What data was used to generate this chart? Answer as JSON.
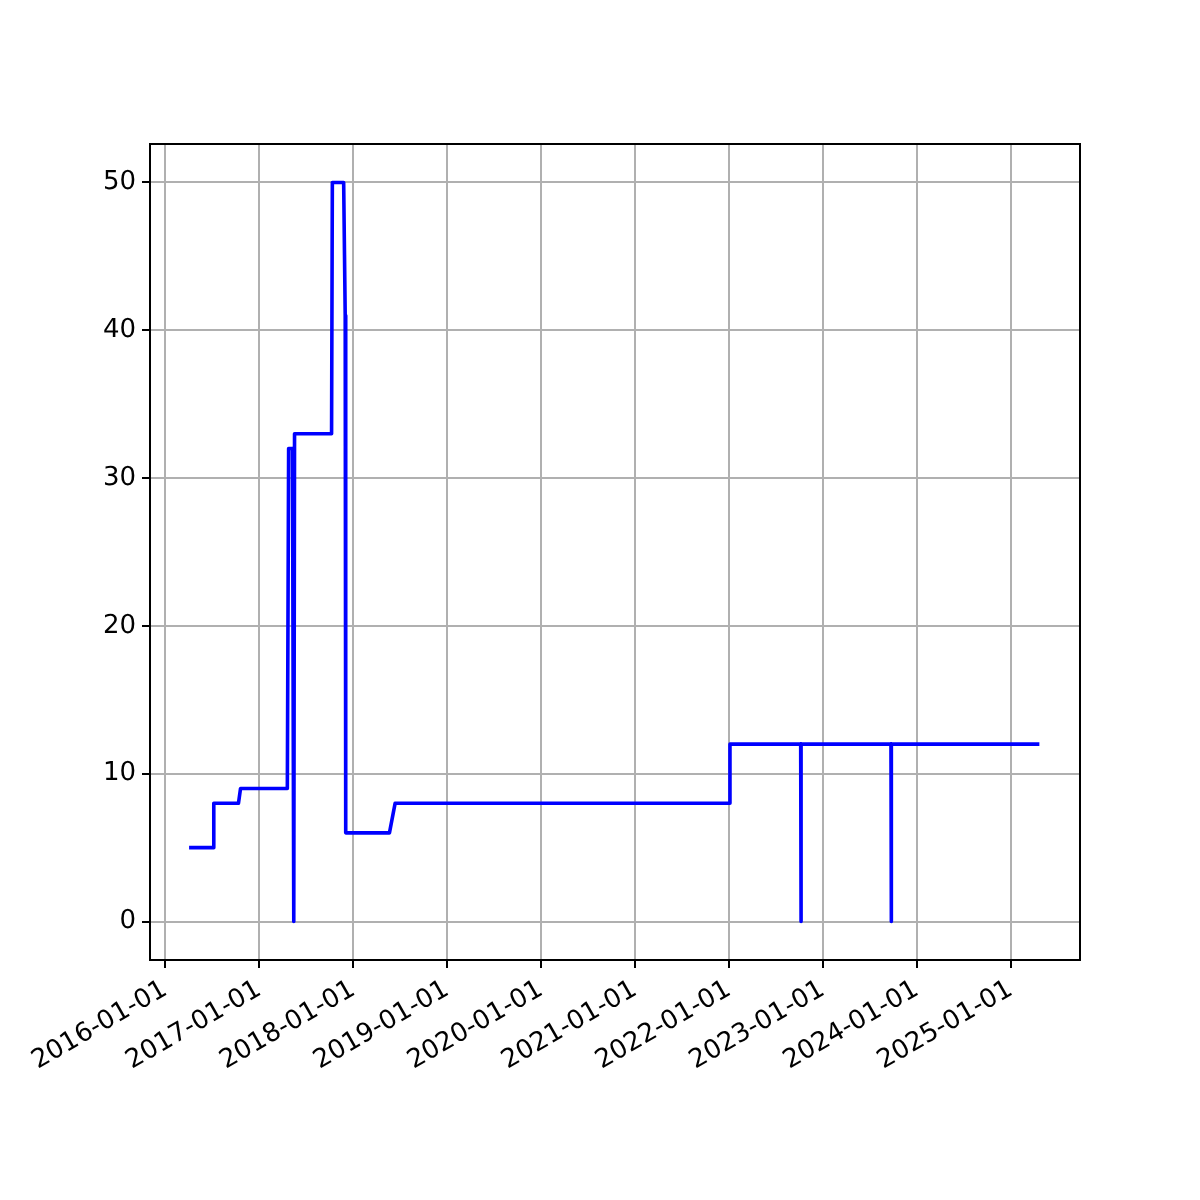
{
  "chart_data": {
    "type": "line",
    "color": "#0000ff",
    "x": [
      "2016-04-03",
      "2016-07-08",
      "2016-07-08",
      "2016-10-12",
      "2016-10-20",
      "2017-04-20",
      "2017-04-25",
      "2017-05-10",
      "2017-05-15",
      "2017-05-18",
      "2017-10-09",
      "2017-10-12",
      "2017-11-25",
      "2017-12-01",
      "2017-12-03",
      "2018-05-22",
      "2018-06-13",
      "2022-01-01",
      "2022-01-05",
      "2022-10-07",
      "2022-10-08",
      "2022-10-09",
      "2023-09-23",
      "2023-09-24",
      "2023-09-25",
      "2025-04-22"
    ],
    "values": [
      5,
      5,
      8,
      8,
      9,
      9,
      32,
      32,
      0,
      33,
      33,
      50,
      50,
      41,
      6,
      6,
      8,
      8,
      12,
      12,
      0,
      12,
      12,
      0,
      12,
      12
    ],
    "xlim": [
      "2015-11-03",
      "2025-09-27"
    ],
    "xticks": [
      "2016-01-01",
      "2017-01-01",
      "2018-01-01",
      "2019-01-01",
      "2020-01-01",
      "2021-01-01",
      "2022-01-01",
      "2023-01-01",
      "2024-01-01",
      "2025-01-01"
    ],
    "ylim": [
      -2.6,
      52.6
    ],
    "yticks": [
      0,
      10,
      20,
      30,
      40,
      50
    ],
    "grid": true,
    "legend": false,
    "marker": "none",
    "line_style": "solid"
  }
}
